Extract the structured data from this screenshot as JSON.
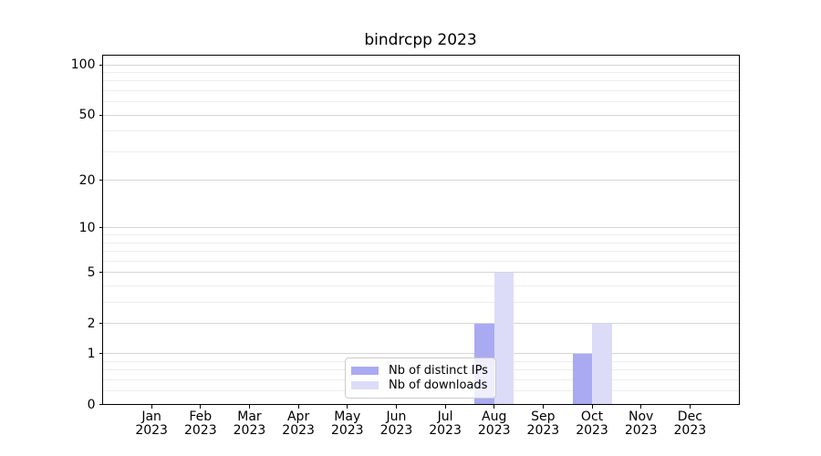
{
  "chart_data": {
    "type": "bar",
    "title": "bindrcpp 2023",
    "categories": [
      "Jan 2023",
      "Feb 2023",
      "Mar 2023",
      "Apr 2023",
      "May 2023",
      "Jun 2023",
      "Jul 2023",
      "Aug 2023",
      "Sep 2023",
      "Oct 2023",
      "Nov 2023",
      "Dec 2023"
    ],
    "x_tick_months": [
      "Jan",
      "Feb",
      "Mar",
      "Apr",
      "May",
      "Jun",
      "Jul",
      "Aug",
      "Sep",
      "Oct",
      "Nov",
      "Dec"
    ],
    "x_tick_year": "2023",
    "series": [
      {
        "name": "Nb of distinct IPs",
        "color": "#aaaaf2",
        "values": [
          0,
          0,
          0,
          0,
          0,
          0,
          0,
          2,
          0,
          1,
          0,
          0
        ]
      },
      {
        "name": "Nb of downloads",
        "color": "#dcdcf9",
        "values": [
          0,
          0,
          0,
          0,
          0,
          0,
          0,
          5,
          0,
          2,
          0,
          0
        ]
      }
    ],
    "xlabel": "",
    "ylabel": "",
    "y_scale": "log10(1+v)",
    "y_ticks": [
      0,
      1,
      2,
      5,
      10,
      20,
      50,
      100
    ],
    "y_minor_gridlines": [
      0.2,
      0.4,
      0.6,
      0.8,
      3,
      4,
      6,
      7,
      8,
      9,
      30,
      40,
      60,
      70,
      80,
      90
    ],
    "ylim": [
      0,
      114
    ],
    "grid": true,
    "legend": {
      "position": "inside-bottom-center",
      "entries": [
        "Nb of distinct IPs",
        "Nb of downloads"
      ]
    },
    "colors": {
      "major_grid": "#d6d6d6",
      "minor_grid": "#ededed",
      "spine": "#000000",
      "text": "#000000",
      "background": "#ffffff"
    }
  }
}
